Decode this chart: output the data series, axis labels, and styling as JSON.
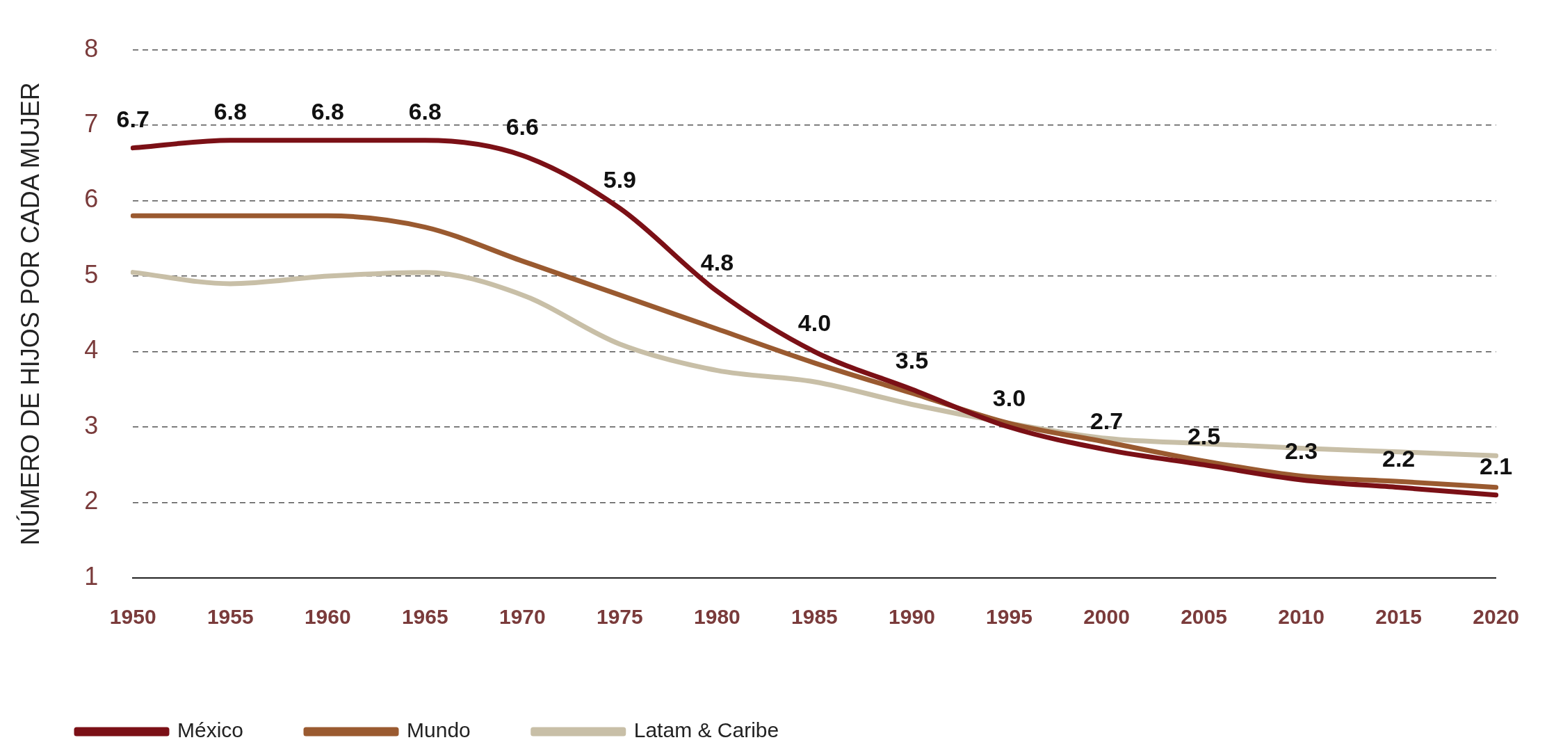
{
  "chart_data": {
    "type": "line",
    "ylabel": "NÚMERO DE HIJOS POR CADA MUJER",
    "categories": [
      "1950",
      "1955",
      "1960",
      "1965",
      "1970",
      "1975",
      "1980",
      "1985",
      "1990",
      "1995",
      "2000",
      "2005",
      "2010",
      "2015",
      "2020"
    ],
    "ylim": [
      1,
      8
    ],
    "yticks": [
      1,
      2,
      3,
      4,
      5,
      6,
      7,
      8
    ],
    "grid": "y",
    "legend": "bottom left",
    "marker": "none",
    "line_style": "solid",
    "series": [
      {
        "name": "México",
        "color": "#7b1016",
        "values": [
          6.7,
          6.8,
          6.8,
          6.8,
          6.6,
          5.9,
          4.8,
          4.0,
          3.5,
          3.0,
          2.7,
          2.5,
          2.3,
          2.2,
          2.1
        ],
        "value_labels": [
          "6.7",
          "6.8",
          "6.8",
          "6.8",
          "6.6",
          "5.9",
          "4.8",
          "4.0",
          "3.5",
          "3.0",
          "2.7",
          "2.5",
          "2.3",
          "2.2",
          "2.1"
        ]
      },
      {
        "name": "Mundo",
        "color": "#9a5a30",
        "values": [
          5.8,
          5.8,
          5.8,
          5.65,
          5.2,
          4.75,
          4.3,
          3.85,
          3.45,
          3.05,
          2.8,
          2.55,
          2.35,
          2.28,
          2.2
        ]
      },
      {
        "name": "Latam & Caribe",
        "color": "#c8bfa7",
        "values": [
          5.05,
          4.9,
          5.0,
          5.05,
          4.75,
          4.1,
          3.75,
          3.6,
          3.3,
          3.05,
          2.85,
          2.78,
          2.72,
          2.67,
          2.62
        ]
      }
    ]
  }
}
